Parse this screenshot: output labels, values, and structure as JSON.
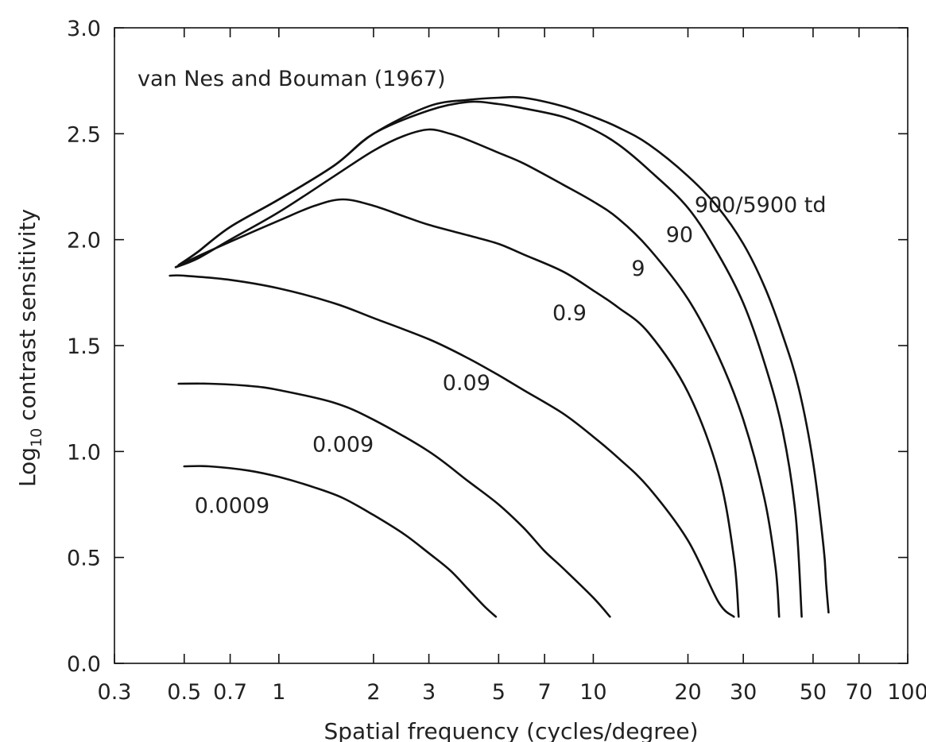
{
  "chart_data": {
    "type": "line",
    "title": "",
    "annotation": "van Nes and Bouman (1967)",
    "xlabel": "Spatial frequency (cycles/degree)",
    "ylabel_main": "Log",
    "ylabel_sub": "10",
    "ylabel_rest": " contrast sensitivity",
    "xscale": "log",
    "xlim": [
      0.3,
      100
    ],
    "ylim": [
      0.0,
      3.0
    ],
    "xticks": [
      0.3,
      0.5,
      0.7,
      1,
      2,
      3,
      5,
      7,
      10,
      20,
      30,
      50,
      70,
      100
    ],
    "xtick_labels": [
      "0.3",
      "0.5",
      "0.7",
      "1",
      "2",
      "3",
      "5",
      "7",
      "10",
      "20",
      "30",
      "50",
      "70",
      "100"
    ],
    "yticks": [
      0.0,
      0.5,
      1.0,
      1.5,
      2.0,
      2.5,
      3.0
    ],
    "ytick_labels": [
      "0.0",
      "0.5",
      "1.0",
      "1.5",
      "2.0",
      "2.5",
      "3.0"
    ],
    "grid": false,
    "series": [
      {
        "name": "900/5900 td",
        "label_at": [
          34,
          2.13
        ],
        "x": [
          0.48,
          0.55,
          0.7,
          1,
          1.5,
          2,
          3,
          4,
          5,
          6,
          8,
          10,
          12,
          15,
          20,
          25,
          30,
          35,
          40,
          45,
          50,
          54,
          55,
          56
        ],
        "y": [
          1.88,
          1.94,
          2.06,
          2.19,
          2.35,
          2.5,
          2.63,
          2.66,
          2.67,
          2.67,
          2.63,
          2.58,
          2.53,
          2.45,
          2.3,
          2.15,
          1.98,
          1.78,
          1.55,
          1.3,
          0.95,
          0.55,
          0.38,
          0.24
        ]
      },
      {
        "name": "90",
        "label_at": [
          18.8,
          1.99
        ],
        "x": [
          0.48,
          0.55,
          0.7,
          1,
          1.5,
          2,
          3,
          4,
          5,
          6,
          8,
          10,
          12,
          15,
          20,
          25,
          30,
          35,
          40,
          44,
          46
        ],
        "y": [
          1.88,
          1.94,
          2.06,
          2.19,
          2.35,
          2.5,
          2.61,
          2.65,
          2.64,
          2.62,
          2.58,
          2.52,
          2.45,
          2.33,
          2.15,
          1.93,
          1.7,
          1.42,
          1.1,
          0.7,
          0.22
        ]
      },
      {
        "name": "9",
        "label_at": [
          13.9,
          1.83
        ],
        "x": [
          0.47,
          0.55,
          0.7,
          1,
          1.5,
          2,
          2.5,
          3,
          3.5,
          4,
          5,
          6,
          8,
          10,
          12,
          15,
          20,
          25,
          30,
          35,
          38,
          39
        ],
        "y": [
          1.87,
          1.91,
          2.0,
          2.13,
          2.3,
          2.42,
          2.49,
          2.52,
          2.5,
          2.47,
          2.41,
          2.36,
          2.26,
          2.18,
          2.1,
          1.96,
          1.72,
          1.45,
          1.15,
          0.78,
          0.45,
          0.22
        ]
      },
      {
        "name": "0.9",
        "label_at": [
          8.4,
          1.62
        ],
        "x": [
          0.47,
          0.55,
          0.7,
          1,
          1.3,
          1.6,
          2,
          2.5,
          3,
          4,
          5,
          6,
          8,
          10,
          12,
          15,
          20,
          25,
          28,
          29
        ],
        "y": [
          1.87,
          1.92,
          1.99,
          2.09,
          2.16,
          2.19,
          2.16,
          2.11,
          2.07,
          2.02,
          1.98,
          1.93,
          1.85,
          1.76,
          1.68,
          1.56,
          1.28,
          0.9,
          0.5,
          0.22
        ]
      },
      {
        "name": "0.09",
        "label_at": [
          3.95,
          1.29
        ],
        "x": [
          0.45,
          0.5,
          0.7,
          1,
          1.5,
          2,
          3,
          4,
          5,
          6,
          8,
          10,
          12,
          15,
          20,
          25,
          28
        ],
        "y": [
          1.83,
          1.83,
          1.81,
          1.77,
          1.7,
          1.63,
          1.53,
          1.44,
          1.36,
          1.29,
          1.18,
          1.07,
          0.97,
          0.83,
          0.58,
          0.29,
          0.22
        ]
      },
      {
        "name": "0.009",
        "label_at": [
          1.6,
          1.0
        ],
        "x": [
          0.48,
          0.6,
          0.8,
          1,
          1.5,
          2,
          3,
          4,
          5,
          6,
          7,
          8,
          10,
          11.3
        ],
        "y": [
          1.32,
          1.32,
          1.31,
          1.29,
          1.23,
          1.15,
          1.0,
          0.86,
          0.75,
          0.64,
          0.53,
          0.45,
          0.31,
          0.22
        ]
      },
      {
        "name": "0.0009",
        "label_at": [
          0.71,
          0.71
        ],
        "x": [
          0.5,
          0.6,
          0.8,
          1,
          1.3,
          1.6,
          2,
          2.5,
          3,
          3.5,
          4,
          4.5,
          4.9
        ],
        "y": [
          0.93,
          0.93,
          0.91,
          0.88,
          0.83,
          0.78,
          0.7,
          0.61,
          0.52,
          0.44,
          0.35,
          0.27,
          0.22
        ]
      }
    ]
  }
}
